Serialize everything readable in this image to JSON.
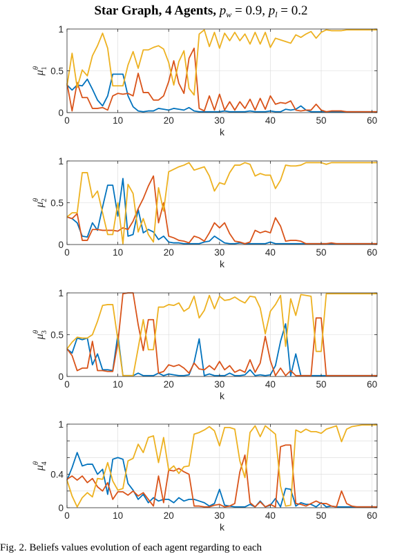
{
  "figure": {
    "title_prefix": "Star Graph, 4 Agents, ",
    "title_pw_symbol": "p",
    "title_pw_sub": "w",
    "title_pw_value": " = 0.9,",
    "title_pl_symbol": "p",
    "title_pl_sub": "l",
    "title_pl_value": " = 0.2",
    "caption": "Fig. 2.   Beliefs values evolution of each agent regarding to each"
  },
  "chart_data": [
    {
      "type": "line",
      "ylabel_symbol": "μ",
      "ylabel_sup": "θ",
      "ylabel_sub": "1",
      "xlabel": "k",
      "xlim": [
        0,
        61
      ],
      "ylim": [
        0,
        1
      ],
      "xticks": [
        0,
        10,
        20,
        30,
        40,
        50,
        60
      ],
      "yticks": [
        0,
        0.5,
        1
      ],
      "ytick_labels": [
        "0",
        "0.5",
        "1"
      ],
      "grid": true,
      "x": [
        0,
        1,
        2,
        3,
        4,
        5,
        6,
        7,
        8,
        9,
        10,
        11,
        12,
        13,
        14,
        15,
        16,
        17,
        18,
        19,
        20,
        21,
        22,
        23,
        24,
        25,
        26,
        27,
        28,
        29,
        30,
        31,
        32,
        33,
        34,
        35,
        36,
        37,
        38,
        39,
        40,
        41,
        42,
        43,
        44,
        45,
        46,
        47,
        48,
        49,
        50,
        51,
        52,
        53,
        54,
        55,
        56,
        57,
        58,
        59,
        60,
        61
      ],
      "series": [
        {
          "color": "#0072BD",
          "values": [
            0.33,
            0.27,
            0.33,
            0.32,
            0.4,
            0.28,
            0.15,
            0.08,
            0.2,
            0.46,
            0.46,
            0.46,
            0.2,
            0.07,
            0.02,
            0.01,
            0.02,
            0.02,
            0.05,
            0.04,
            0.03,
            0.05,
            0.04,
            0.03,
            0.06,
            0.02,
            0.01,
            0.01,
            0.01,
            0.01,
            0.01,
            0.02,
            0.01,
            0.01,
            0.01,
            0.01,
            0.02,
            0.01,
            0.01,
            0.01,
            0.02,
            0.01,
            0.01,
            0.04,
            0.03,
            0.04,
            0.08,
            0.03,
            0.01,
            0.01,
            0.01,
            0.01,
            0.01,
            0.01,
            0.01,
            0.01,
            0.01,
            0.01,
            0.01,
            0.01,
            0.01,
            0.01
          ]
        },
        {
          "color": "#D95319",
          "values": [
            0.35,
            0.02,
            0.36,
            0.18,
            0.18,
            0.05,
            0.05,
            0.06,
            0.03,
            0.2,
            0.23,
            0.22,
            0.23,
            0.2,
            0.47,
            0.24,
            0.24,
            0.15,
            0.15,
            0.2,
            0.37,
            0.62,
            0.35,
            0.23,
            0.65,
            0.77,
            0.05,
            0.02,
            0.2,
            0.03,
            0.22,
            0.03,
            0.13,
            0.03,
            0.13,
            0.05,
            0.16,
            0.03,
            0.17,
            0.04,
            0.2,
            0.1,
            0.12,
            0.11,
            0.14,
            0.03,
            0.02,
            0.03,
            0.03,
            0.1,
            0.03,
            0.01,
            0.02,
            0.02,
            0.02,
            0.01,
            0.01,
            0.01,
            0.01,
            0.01,
            0.01,
            0.01
          ]
        },
        {
          "color": "#EDB120",
          "values": [
            0.32,
            0.71,
            0.3,
            0.51,
            0.44,
            0.68,
            0.8,
            0.95,
            0.77,
            0.32,
            0.32,
            0.32,
            0.57,
            0.73,
            0.53,
            0.75,
            0.75,
            0.78,
            0.8,
            0.76,
            0.6,
            0.33,
            0.61,
            0.74,
            0.29,
            0.21,
            0.94,
            0.99,
            0.79,
            0.96,
            0.77,
            0.95,
            0.86,
            0.96,
            0.86,
            0.94,
            0.82,
            0.96,
            0.82,
            0.96,
            0.78,
            0.89,
            0.87,
            0.85,
            0.83,
            0.93,
            0.9,
            0.94,
            0.97,
            0.89,
            0.96,
            0.99,
            0.98,
            0.98,
            0.98,
            0.99,
            0.99,
            0.99,
            0.99,
            0.99,
            0.99,
            0.99
          ]
        }
      ]
    },
    {
      "type": "line",
      "ylabel_symbol": "μ",
      "ylabel_sup": "θ",
      "ylabel_sub": "2",
      "xlabel": "k",
      "xlim": [
        0,
        61
      ],
      "ylim": [
        0,
        1
      ],
      "xticks": [
        0,
        10,
        20,
        30,
        40,
        50,
        60
      ],
      "yticks": [
        0,
        0.5,
        1
      ],
      "ytick_labels": [
        "0",
        "0.5",
        "1"
      ],
      "grid": true,
      "x": [
        0,
        1,
        2,
        3,
        4,
        5,
        6,
        7,
        8,
        9,
        10,
        11,
        12,
        13,
        14,
        15,
        16,
        17,
        18,
        19,
        20,
        21,
        22,
        23,
        24,
        25,
        26,
        27,
        28,
        29,
        30,
        31,
        32,
        33,
        34,
        35,
        36,
        37,
        38,
        39,
        40,
        41,
        42,
        43,
        44,
        45,
        46,
        47,
        48,
        49,
        50,
        51,
        52,
        53,
        54,
        55,
        56,
        57,
        58,
        59,
        60,
        61
      ],
      "series": [
        {
          "color": "#0072BD",
          "values": [
            0.33,
            0.31,
            0.26,
            0.1,
            0.09,
            0.26,
            0.17,
            0.45,
            0.71,
            0.71,
            0.34,
            0.79,
            0.1,
            0.12,
            0.42,
            0.14,
            0.18,
            0.15,
            0.06,
            0.1,
            0.03,
            0.02,
            0.02,
            0.01,
            0.01,
            0.01,
            0.01,
            0.03,
            0.04,
            0.1,
            0.06,
            0.02,
            0.01,
            0.01,
            0.02,
            0.01,
            0.01,
            0.01,
            0.01,
            0.01,
            0.03,
            0.01,
            0.01,
            0.01,
            0.01,
            0.01,
            0.01,
            0.01,
            0.01,
            0.01,
            0.01,
            0.01,
            0.01,
            0.01,
            0.01,
            0.01,
            0.01,
            0.01,
            0.01,
            0.01,
            0.01,
            0.01
          ]
        },
        {
          "color": "#D95319",
          "values": [
            0.33,
            0.31,
            0.37,
            0.05,
            0.05,
            0.18,
            0.18,
            0.17,
            0.17,
            0.17,
            0.16,
            0.2,
            0.18,
            0.28,
            0.43,
            0.55,
            0.7,
            0.82,
            0.26,
            0.5,
            0.1,
            0.08,
            0.05,
            0.04,
            0.02,
            0.1,
            0.08,
            0.04,
            0.14,
            0.26,
            0.2,
            0.26,
            0.13,
            0.04,
            0.03,
            0.01,
            0.03,
            0.17,
            0.14,
            0.16,
            0.14,
            0.32,
            0.22,
            0.04,
            0.05,
            0.05,
            0.04,
            0.01,
            0.01,
            0.01,
            0.01,
            0.01,
            0.02,
            0.01,
            0.01,
            0.01,
            0.01,
            0.01,
            0.01,
            0.01,
            0.01,
            0.01
          ]
        },
        {
          "color": "#EDB120",
          "values": [
            0.33,
            0.38,
            0.38,
            0.86,
            0.86,
            0.56,
            0.64,
            0.38,
            0.12,
            0.12,
            0.5,
            0.01,
            0.72,
            0.61,
            0.15,
            0.31,
            0.12,
            0.03,
            0.68,
            0.4,
            0.87,
            0.9,
            0.93,
            0.95,
            0.98,
            0.89,
            0.91,
            0.93,
            0.82,
            0.64,
            0.74,
            0.72,
            0.86,
            0.95,
            0.95,
            0.98,
            0.96,
            0.82,
            0.85,
            0.83,
            0.83,
            0.67,
            0.77,
            0.95,
            0.94,
            0.94,
            0.95,
            0.98,
            0.98,
            0.98,
            0.98,
            0.96,
            0.98,
            0.98,
            0.98,
            0.98,
            0.98,
            0.98,
            0.98,
            0.98,
            0.98,
            0.98
          ]
        }
      ]
    },
    {
      "type": "line",
      "ylabel_symbol": "μ",
      "ylabel_sup": "θ",
      "ylabel_sub": "3",
      "xlabel": "k",
      "xlim": [
        0,
        61
      ],
      "ylim": [
        0,
        1
      ],
      "xticks": [
        0,
        10,
        20,
        30,
        40,
        50,
        60
      ],
      "yticks": [
        0,
        0.5,
        1
      ],
      "ytick_labels": [
        "0",
        "0.5",
        "1"
      ],
      "grid": true,
      "x": [
        0,
        1,
        2,
        3,
        4,
        5,
        6,
        7,
        8,
        9,
        10,
        11,
        12,
        13,
        14,
        15,
        16,
        17,
        18,
        19,
        20,
        21,
        22,
        23,
        24,
        25,
        26,
        27,
        28,
        29,
        30,
        31,
        32,
        33,
        34,
        35,
        36,
        37,
        38,
        39,
        40,
        41,
        42,
        43,
        44,
        45,
        46,
        47,
        48,
        49,
        50,
        51,
        52,
        53,
        54,
        55,
        56,
        57,
        58,
        59,
        60,
        61
      ],
      "series": [
        {
          "color": "#0072BD",
          "values": [
            0.33,
            0.28,
            0.46,
            0.44,
            0.46,
            0.14,
            0.27,
            0.08,
            0.08,
            0.07,
            0.5,
            0.01,
            0.01,
            0.01,
            0.04,
            0.01,
            0.01,
            0.01,
            0.04,
            0.01,
            0.03,
            0.02,
            0.01,
            0.01,
            0.02,
            0.17,
            0.45,
            0.01,
            0.03,
            0.01,
            0.01,
            0.01,
            0.04,
            0.01,
            0.01,
            0.02,
            0.08,
            0.01,
            0.02,
            0.01,
            0.02,
            0.13,
            0.42,
            0.63,
            0.01,
            0.27,
            0.01,
            0.01,
            0.01,
            0.01,
            0.01,
            0.01,
            0.01,
            0.01,
            0.01,
            0.01,
            0.01,
            0.01,
            0.01,
            0.01,
            0.01,
            0.01
          ]
        },
        {
          "color": "#D95319",
          "values": [
            0.33,
            0.25,
            0.07,
            0.1,
            0.1,
            0.42,
            0.07,
            0.07,
            0.06,
            0.06,
            0.4,
            0.99,
            1.0,
            1.0,
            0.62,
            0.31,
            0.68,
            0.68,
            0.04,
            0.06,
            0.14,
            0.12,
            0.14,
            0.1,
            0.04,
            0.16,
            0.09,
            0.08,
            0.13,
            0.08,
            0.18,
            0.08,
            0.13,
            0.05,
            0.08,
            0.05,
            0.2,
            0.05,
            0.16,
            0.48,
            0.19,
            0.01,
            0.1,
            0.01,
            0.07,
            0.01,
            0.01,
            0.01,
            0.01,
            0.7,
            0.7,
            0.01,
            0.01,
            0.01,
            0.01,
            0.01,
            0.01,
            0.01,
            0.01,
            0.01,
            0.01,
            0.01
          ]
        },
        {
          "color": "#EDB120",
          "values": [
            0.33,
            0.41,
            0.47,
            0.46,
            0.46,
            0.5,
            0.66,
            0.85,
            0.86,
            0.86,
            0.44,
            0.01,
            0.01,
            0.01,
            0.34,
            0.68,
            0.32,
            0.32,
            0.83,
            0.83,
            0.86,
            0.85,
            0.88,
            0.78,
            0.82,
            0.96,
            0.7,
            0.79,
            0.97,
            0.81,
            0.96,
            0.91,
            0.92,
            0.95,
            0.91,
            0.88,
            0.96,
            0.95,
            0.82,
            0.51,
            0.78,
            0.86,
            0.97,
            0.36,
            0.93,
            0.73,
            0.98,
            0.97,
            0.96,
            0.3,
            0.3,
            0.99,
            0.99,
            0.99,
            0.99,
            0.99,
            0.99,
            0.99,
            0.99,
            0.99,
            0.99,
            0.99
          ]
        }
      ]
    },
    {
      "type": "line",
      "ylabel_symbol": "μ",
      "ylabel_sup": "θ",
      "ylabel_sub": "4",
      "xlabel": "k",
      "xlim": [
        0,
        61
      ],
      "ylim": [
        0,
        1
      ],
      "xticks": [
        0,
        10,
        20,
        30,
        40,
        50,
        60
      ],
      "yticks": [
        0,
        0.2,
        0.4,
        0.6,
        0.8,
        1
      ],
      "ytick_labels": [
        "0",
        "",
        "0.4",
        "",
        "",
        "1"
      ],
      "grid": true,
      "x": [
        0,
        1,
        2,
        3,
        4,
        5,
        6,
        7,
        8,
        9,
        10,
        11,
        12,
        13,
        14,
        15,
        16,
        17,
        18,
        19,
        20,
        21,
        22,
        23,
        24,
        25,
        26,
        27,
        28,
        29,
        30,
        31,
        32,
        33,
        34,
        35,
        36,
        37,
        38,
        39,
        40,
        41,
        42,
        43,
        44,
        45,
        46,
        47,
        48,
        49,
        50,
        51,
        52,
        53,
        54,
        55,
        56,
        57,
        58,
        59,
        60,
        61
      ],
      "series": [
        {
          "color": "#0072BD",
          "values": [
            0.33,
            0.48,
            0.66,
            0.5,
            0.52,
            0.52,
            0.4,
            0.46,
            0.16,
            0.58,
            0.6,
            0.58,
            0.29,
            0.21,
            0.1,
            0.16,
            0.06,
            0.12,
            0.08,
            0.1,
            0.1,
            0.06,
            0.12,
            0.08,
            0.1,
            0.1,
            0.08,
            0.06,
            0.02,
            0.05,
            0.22,
            0.03,
            0.02,
            0.01,
            0.01,
            0.01,
            0.04,
            0.01,
            0.08,
            0.01,
            0.03,
            0.11,
            0.01,
            0.23,
            0.22,
            0.02,
            0.06,
            0.04,
            0.04,
            0.01,
            0.06,
            0.01,
            0.02,
            0.01,
            0.01,
            0.01,
            0.01,
            0.01,
            0.01,
            0.01,
            0.01,
            0.01
          ]
        },
        {
          "color": "#D95319",
          "values": [
            0.34,
            0.38,
            0.33,
            0.38,
            0.3,
            0.35,
            0.25,
            0.2,
            0.3,
            0.1,
            0.19,
            0.19,
            0.15,
            0.2,
            0.14,
            0.18,
            0.1,
            0.02,
            0.38,
            0.06,
            0.45,
            0.44,
            0.47,
            0.43,
            0.4,
            0.02,
            0.02,
            0.01,
            0.01,
            0.03,
            0.04,
            0.01,
            0.02,
            0.05,
            0.43,
            0.63,
            0.06,
            0.01,
            0.07,
            0.01,
            0.04,
            0.01,
            0.73,
            0.75,
            0.75,
            0.05,
            0.04,
            0.02,
            0.05,
            0.08,
            0.05,
            0.05,
            0.02,
            0.01,
            0.2,
            0.05,
            0.02,
            0.01,
            0.01,
            0.01,
            0.01,
            0.01
          ]
        },
        {
          "color": "#EDB120",
          "values": [
            0.33,
            0.14,
            0.01,
            0.12,
            0.18,
            0.13,
            0.35,
            0.34,
            0.54,
            0.32,
            0.21,
            0.23,
            0.56,
            0.59,
            0.76,
            0.66,
            0.84,
            0.86,
            0.54,
            0.84,
            0.45,
            0.5,
            0.41,
            0.49,
            0.5,
            0.88,
            0.9,
            0.93,
            0.97,
            0.92,
            0.74,
            0.96,
            0.96,
            0.94,
            0.56,
            0.36,
            0.9,
            0.98,
            0.85,
            0.98,
            0.93,
            0.88,
            0.26,
            0.02,
            0.03,
            0.93,
            0.9,
            0.94,
            0.91,
            0.91,
            0.89,
            0.94,
            0.96,
            0.98,
            0.79,
            0.94,
            0.97,
            0.98,
            0.99,
            0.99,
            0.99,
            0.99
          ]
        }
      ]
    }
  ]
}
